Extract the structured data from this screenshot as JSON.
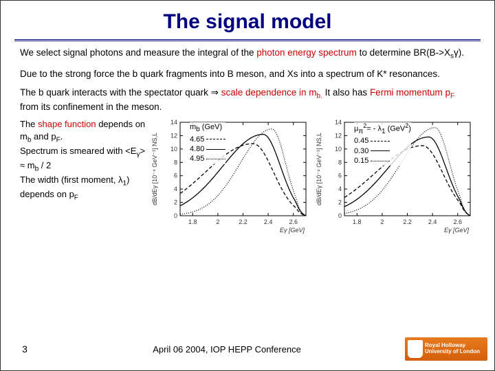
{
  "title": "The signal model",
  "para1_a": "We select signal photons and measure the integral of the ",
  "para1_b": "photon energy spectrum",
  "para1_c": " to determine BR(B->X",
  "para1_d": "s",
  "para1_e": "γ).",
  "para2": "Due to the strong force the b quark fragments into  B meson, and Xs into a spectrum of K* resonances.",
  "para3_a": "The b quark interacts with the spectator quark ⇒ ",
  "para3_b": "scale dependence in m",
  "para3_b2": "b.",
  "para3_c": " It also has ",
  "para3_d": "Fermi momentum p",
  "para3_d2": "F",
  "para3_e": " from its confinement in the meson.",
  "left_text": {
    "l1a": "The ",
    "l1b": "shape function",
    "l1c": " depends on m",
    "l1d": "b",
    "l1e": " and p",
    "l1f": "F",
    "l1g": ".",
    "l2a": " Spectrum is smeared with <E",
    "l2b": "γ",
    "l2c": "> ≈ m",
    "l2d": "b",
    "l2e": " / 2",
    "l3a": " The width (first moment, λ",
    "l3b": "1",
    "l3c": ") depends on p",
    "l3d": "F"
  },
  "legend1": {
    "title": "m",
    "title_sub": "b",
    "title_unit": " (GeV)",
    "items": [
      "4.65",
      "4.80",
      "4.95"
    ]
  },
  "legend2": {
    "sym": "μ",
    "sub1": "π",
    "sup": "2",
    "eq": "= - λ",
    "sub2": "1",
    "unit": " (GeV",
    "sup2": "2",
    "unitc": ")",
    "items": [
      "0.45",
      "0.30",
      "0.15"
    ]
  },
  "chart": {
    "xlabel": "Eγ  [GeV]",
    "ylabel": "dB/dEγ [10⁻⁴ GeV⁻¹] NS,L",
    "x_ticks": [
      "1.8",
      "2",
      "2.2",
      "2.4",
      "2.6"
    ],
    "x_vals": [
      1.8,
      2.0,
      2.2,
      2.4,
      2.6
    ],
    "y_range": [
      0,
      14
    ],
    "y_ticks": [
      0,
      2,
      4,
      6,
      8,
      10,
      12,
      14
    ],
    "colors": {
      "axis": "#000000",
      "curve": "#000000",
      "bg": "#ffffff"
    },
    "chart1": {
      "type": "line",
      "series": [
        {
          "style": "dashed",
          "peak_x": 2.28,
          "peak_y": 10.8,
          "width": 0.27
        },
        {
          "style": "solid",
          "peak_x": 2.36,
          "peak_y": 12.2,
          "width": 0.23
        },
        {
          "style": "dotted",
          "peak_x": 2.43,
          "peak_y": 13.0,
          "width": 0.18
        }
      ]
    },
    "chart2": {
      "type": "line",
      "series": [
        {
          "style": "dashed",
          "peak_x": 2.32,
          "peak_y": 10.5,
          "width": 0.27
        },
        {
          "style": "solid",
          "peak_x": 2.37,
          "peak_y": 11.8,
          "width": 0.23
        },
        {
          "style": "dotted",
          "peak_x": 2.42,
          "peak_y": 13.2,
          "width": 0.19
        }
      ]
    }
  },
  "footer": {
    "page": "3",
    "text": "April 06 2004, IOP HEPP Conference",
    "logo1": "Royal Holloway",
    "logo2": "University of London"
  }
}
